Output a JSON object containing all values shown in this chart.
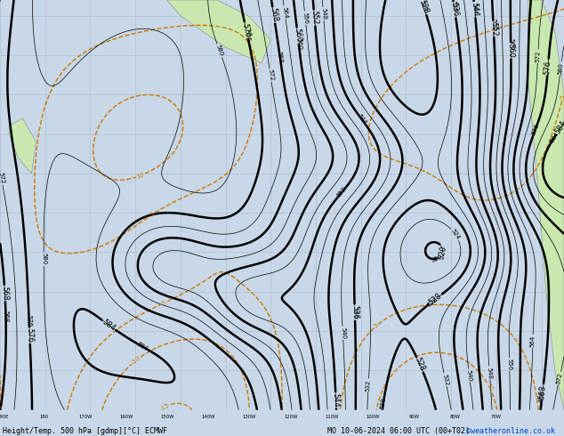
{
  "title_bottom": "Height/Temp. 500 hPa [gdmp][°C] ECMWF",
  "title_datetime": "MO 10-06-2024 06:00 UTC (00+T02)",
  "credit": "©weatheronline.co.uk",
  "background_color": "#c8d8e8",
  "land_color": "#c8e8b0",
  "land_edge_color": "#888888",
  "grid_color": "#b0c0d0",
  "bottom_bar_color": "#dce8f0",
  "z500_color": "#000000",
  "temp_color": "#cc7700",
  "rain_color": "#cc0000",
  "slp_color": "#00aaaa",
  "z850_color": "#008800",
  "font_size_labels": 5,
  "font_size_bottom": 6,
  "font_size_credit": 6
}
